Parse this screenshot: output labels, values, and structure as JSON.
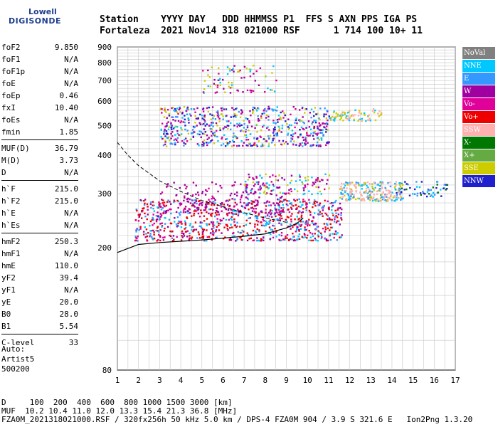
{
  "logo": {
    "line1": "Lowell",
    "line2": "DIGISONDE"
  },
  "header": {
    "line1": "Station    YYYY DAY   DDD HHMMSS P1  FFS S AXN PPS IGA PS",
    "line2": "Fortaleza  2021 Nov14 318 021000 RSF      1 714 100 10+ 11"
  },
  "params": [
    [
      {
        "label": "foF2",
        "value": "9.850"
      },
      {
        "label": "foF1",
        "value": "N/A"
      },
      {
        "label": "foF1p",
        "value": "N/A"
      },
      {
        "label": "foE",
        "value": "N/A"
      },
      {
        "label": "foEp",
        "value": "0.46"
      },
      {
        "label": "fxI",
        "value": "10.40"
      },
      {
        "label": "foEs",
        "value": "N/A"
      },
      {
        "label": "fmin",
        "value": "1.85"
      }
    ],
    [
      {
        "label": "MUF(D)",
        "value": "36.79"
      },
      {
        "label": "M(D)",
        "value": "3.73"
      },
      {
        "label": "D",
        "value": "N/A"
      }
    ],
    [
      {
        "label": "h`F",
        "value": "215.0"
      },
      {
        "label": "h`F2",
        "value": "215.0"
      },
      {
        "label": "h`E",
        "value": "N/A"
      },
      {
        "label": "h`Es",
        "value": "N/A"
      }
    ],
    [
      {
        "label": "hmF2",
        "value": "250.3"
      },
      {
        "label": "hmF1",
        "value": "N/A"
      },
      {
        "label": "hmE",
        "value": "110.0"
      },
      {
        "label": "yF2",
        "value": "39.4"
      },
      {
        "label": "yF1",
        "value": "N/A"
      },
      {
        "label": "yE",
        "value": "20.0"
      },
      {
        "label": "B0",
        "value": "28.0"
      },
      {
        "label": "B1",
        "value": "5.54"
      }
    ],
    [
      {
        "label": "C-level",
        "value": "33"
      }
    ]
  ],
  "auto": {
    "line1": "Auto:",
    "line2": "Artist5",
    "line3": "500200"
  },
  "legend": [
    {
      "label": "NoVal",
      "color": "#808080"
    },
    {
      "label": "NNE",
      "color": "#00c8ff"
    },
    {
      "label": "E",
      "color": "#3399ff"
    },
    {
      "label": "W",
      "color": "#a000a0"
    },
    {
      "label": "Vo-",
      "color": "#e0009a"
    },
    {
      "label": "Vo+",
      "color": "#ee0000"
    },
    {
      "label": "SSW",
      "color": "#ffb0b0"
    },
    {
      "label": "X-",
      "color": "#007700"
    },
    {
      "label": "X+",
      "color": "#66aa44"
    },
    {
      "label": "SSE",
      "color": "#cccc00"
    },
    {
      "label": "NNW",
      "color": "#2020cc"
    }
  ],
  "chart_data": {
    "type": "scatter",
    "xlim": [
      1,
      17
    ],
    "ylim": [
      80,
      900
    ],
    "y_scale": "log",
    "x_ticks": [
      "1",
      "2",
      "3",
      "4",
      "5",
      "6",
      "7",
      "8",
      "9",
      "10",
      "11",
      "12",
      "13",
      "14",
      "15",
      "16",
      "17"
    ],
    "y_ticks": [
      {
        "v": 80,
        "t": "80"
      },
      {
        "v": 200,
        "t": "200"
      },
      {
        "v": 300,
        "t": "300"
      },
      {
        "v": 400,
        "t": "400"
      },
      {
        "v": 500,
        "t": "500"
      },
      {
        "v": 600,
        "t": "600"
      },
      {
        "v": 700,
        "t": "700"
      },
      {
        "v": 800,
        "t": "800"
      },
      {
        "v": 900,
        "t": "900"
      }
    ],
    "grid": true,
    "profile_curve": [
      [
        1,
        193
      ],
      [
        2,
        205
      ],
      [
        3,
        208
      ],
      [
        4,
        210
      ],
      [
        5,
        212
      ],
      [
        6,
        215
      ],
      [
        7,
        218
      ],
      [
        8,
        222
      ],
      [
        9,
        232
      ],
      [
        9.5,
        240
      ],
      [
        9.8,
        250
      ]
    ],
    "dashed_curve": [
      [
        1,
        440
      ],
      [
        1.5,
        400
      ],
      [
        2,
        370
      ],
      [
        3,
        330
      ],
      [
        4,
        305
      ],
      [
        5,
        285
      ],
      [
        6,
        272
      ],
      [
        7,
        260
      ],
      [
        8,
        250
      ],
      [
        9,
        242
      ]
    ],
    "echo_regions": [
      {
        "x": [
          1.8,
          11.6
        ],
        "y": [
          212,
          290
        ],
        "colors": [
          "#ee0000",
          "#e0009a",
          "#3399ff",
          "#00c8ff",
          "#a000a0",
          "#ee0000"
        ],
        "n": 900
      },
      {
        "x": [
          11.5,
          14.5
        ],
        "y": [
          285,
          330
        ],
        "colors": [
          "#ffb0b0",
          "#00c8ff",
          "#3399ff",
          "#cccc00",
          "#ffb0b0"
        ],
        "n": 240
      },
      {
        "x": [
          14.0,
          16.6
        ],
        "y": [
          295,
          330
        ],
        "colors": [
          "#3399ff",
          "#00c8ff",
          "#007700",
          "#2020cc"
        ],
        "n": 60
      },
      {
        "x": [
          3.0,
          8.8
        ],
        "y": [
          260,
          330
        ],
        "colors": [
          "#a000a0",
          "#e0009a",
          "#a000a0"
        ],
        "n": 160
      },
      {
        "x": [
          7,
          11
        ],
        "y": [
          300,
          350
        ],
        "colors": [
          "#a000a0",
          "#00c8ff",
          "#e0009a",
          "#cccc00"
        ],
        "n": 120
      },
      {
        "x": [
          3.0,
          11.0
        ],
        "y": [
          430,
          580
        ],
        "colors": [
          "#a000a0",
          "#e0009a",
          "#00c8ff",
          "#cccc00",
          "#3399ff",
          "#2020cc"
        ],
        "n": 650
      },
      {
        "x": [
          11,
          13.5
        ],
        "y": [
          520,
          570
        ],
        "colors": [
          "#cccc00",
          "#00c8ff",
          "#ffb0b0"
        ],
        "n": 80
      },
      {
        "x": [
          5,
          8.5
        ],
        "y": [
          640,
          790
        ],
        "colors": [
          "#a000a0",
          "#e0009a",
          "#cccc00",
          "#00c8ff"
        ],
        "n": 80
      }
    ]
  },
  "footer": {
    "line1": "D     100  200  400  600  800 1000 1500 3000 [km]",
    "line2": "MUF  10.2 10.4 11.0 12.0 13.3 15.4 21.3 36.8 [MHz]",
    "line3": "FZA0M_2021318021000.RSF / 320fx256h 50 kHz 5.0 km / DPS-4 FZA0M 904 / 3.9 S 321.6 E   Ion2Png 1.3.20"
  }
}
